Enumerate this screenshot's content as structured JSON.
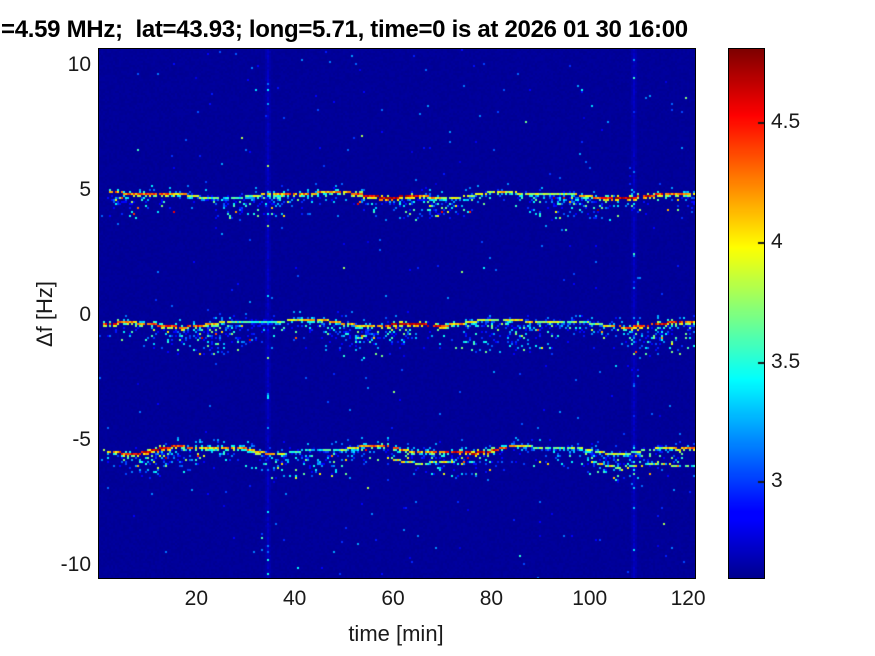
{
  "title": "=4.59 MHz;  lat=43.93; long=5.71, time=0 is at 2026 01 30 16:00",
  "chart_data": {
    "type": "heatmap",
    "subtype": "doppler-spectrogram",
    "title": "=4.59 MHz;  lat=43.93; long=5.71, time=0 is at 2026 01 30 16:00",
    "xlabel": "time [min]",
    "ylabel": "Δf [Hz]",
    "xlim": [
      0,
      121.2
    ],
    "ylim": [
      -10.48,
      10.68
    ],
    "xticks": [
      20,
      40,
      60,
      80,
      100,
      120
    ],
    "yticks": [
      10,
      5,
      0,
      -5,
      -10
    ],
    "grid": false,
    "colormap": "jet",
    "background_value": 2.62,
    "colorbar": {
      "position": "right",
      "range": [
        2.6,
        4.81
      ],
      "ticks": [
        4.5,
        4,
        3.5,
        3
      ]
    },
    "bands": [
      {
        "name": "upper-doppler-trace",
        "center_hz": 4.88,
        "wobble_hz": 0.1,
        "periods_min": [
          40,
          16
        ],
        "phase": 0.7,
        "spread_below_hz": 1.0,
        "intensity_min": 3.2,
        "intensity_max": 4.75,
        "hot_phase": 1.8,
        "split_trace": false
      },
      {
        "name": "center-doppler-trace",
        "center_hz": -0.22,
        "wobble_hz": 0.11,
        "periods_min": [
          46,
          18
        ],
        "phase": 2.6,
        "spread_below_hz": 1.35,
        "intensity_min": 3.2,
        "intensity_max": 4.7,
        "hot_phase": 0.9,
        "split_trace": false
      },
      {
        "name": "lower-doppler-trace",
        "center_hz": -5.28,
        "wobble_hz": 0.12,
        "periods_min": [
          34,
          14
        ],
        "phase": 4.0,
        "spread_below_hz": 1.1,
        "intensity_min": 3.1,
        "intensity_max": 4.7,
        "hot_phase": 6.2,
        "split_trace": true
      }
    ],
    "artifacts": [
      {
        "type": "vertical-streak",
        "time_min": 34
      },
      {
        "type": "vertical-streak",
        "time_min": 108.5
      }
    ]
  }
}
